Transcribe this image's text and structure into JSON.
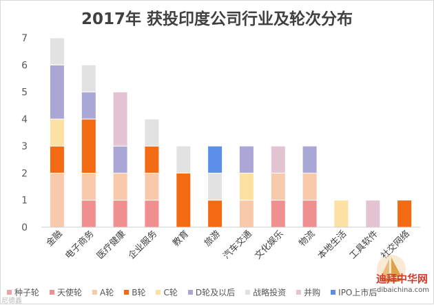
{
  "chart_data": {
    "type": "stacked-bar",
    "title": "2017年 获投印度公司行业及轮次分布",
    "ylim": [
      0,
      7
    ],
    "yticks": [
      0,
      1,
      2,
      3,
      4,
      5,
      6,
      7
    ],
    "grid": false,
    "legend_position": "bottom",
    "categories": [
      "金融",
      "电子商务",
      "医疗健康",
      "企业服务",
      "教育",
      "旅游",
      "汽车交通",
      "文化娱乐",
      "物流",
      "本地生活",
      "工具软件",
      "社交网络"
    ],
    "series": [
      {
        "name": "种子轮",
        "color": "#e8a3a3",
        "values": [
          0,
          0,
          0,
          0,
          0,
          0,
          0,
          0,
          0,
          0,
          0,
          0
        ]
      },
      {
        "name": "天使轮",
        "color": "#ef8f8f",
        "values": [
          0,
          1,
          1,
          1,
          0,
          0,
          0,
          1,
          1,
          0,
          0,
          0
        ]
      },
      {
        "name": "A轮",
        "color": "#f9c9ac",
        "values": [
          2,
          1,
          1,
          1,
          0,
          0,
          1,
          1,
          1,
          0,
          0,
          0
        ]
      },
      {
        "name": "B轮",
        "color": "#f26a12",
        "values": [
          1,
          2,
          0,
          1,
          2,
          1,
          0,
          0,
          0,
          0,
          0,
          1
        ]
      },
      {
        "name": "C轮",
        "color": "#fde1a3",
        "values": [
          1,
          0,
          0,
          0,
          0,
          0,
          1,
          0,
          0,
          1,
          0,
          0
        ]
      },
      {
        "name": "D轮及以后",
        "color": "#aaa6d6",
        "values": [
          2,
          1,
          1,
          0,
          0,
          0,
          1,
          0,
          1,
          0,
          0,
          0
        ]
      },
      {
        "name": "战略投资",
        "color": "#e2e2e2",
        "values": [
          1,
          1,
          0,
          1,
          1,
          1,
          0,
          0,
          0,
          0,
          0,
          0
        ]
      },
      {
        "name": "并购",
        "color": "#e4c3d3",
        "values": [
          0,
          0,
          2,
          0,
          0,
          0,
          0,
          1,
          0,
          0,
          1,
          0
        ]
      },
      {
        "name": "IPO上市后",
        "color": "#5b8ee6",
        "values": [
          0,
          0,
          0,
          0,
          0,
          1,
          0,
          0,
          0,
          0,
          0,
          0
        ]
      }
    ]
  },
  "watermark": {
    "left_text": "尼德鑫",
    "logo_name": "迪拜中华网",
    "logo_url": "dibaichina.com"
  }
}
